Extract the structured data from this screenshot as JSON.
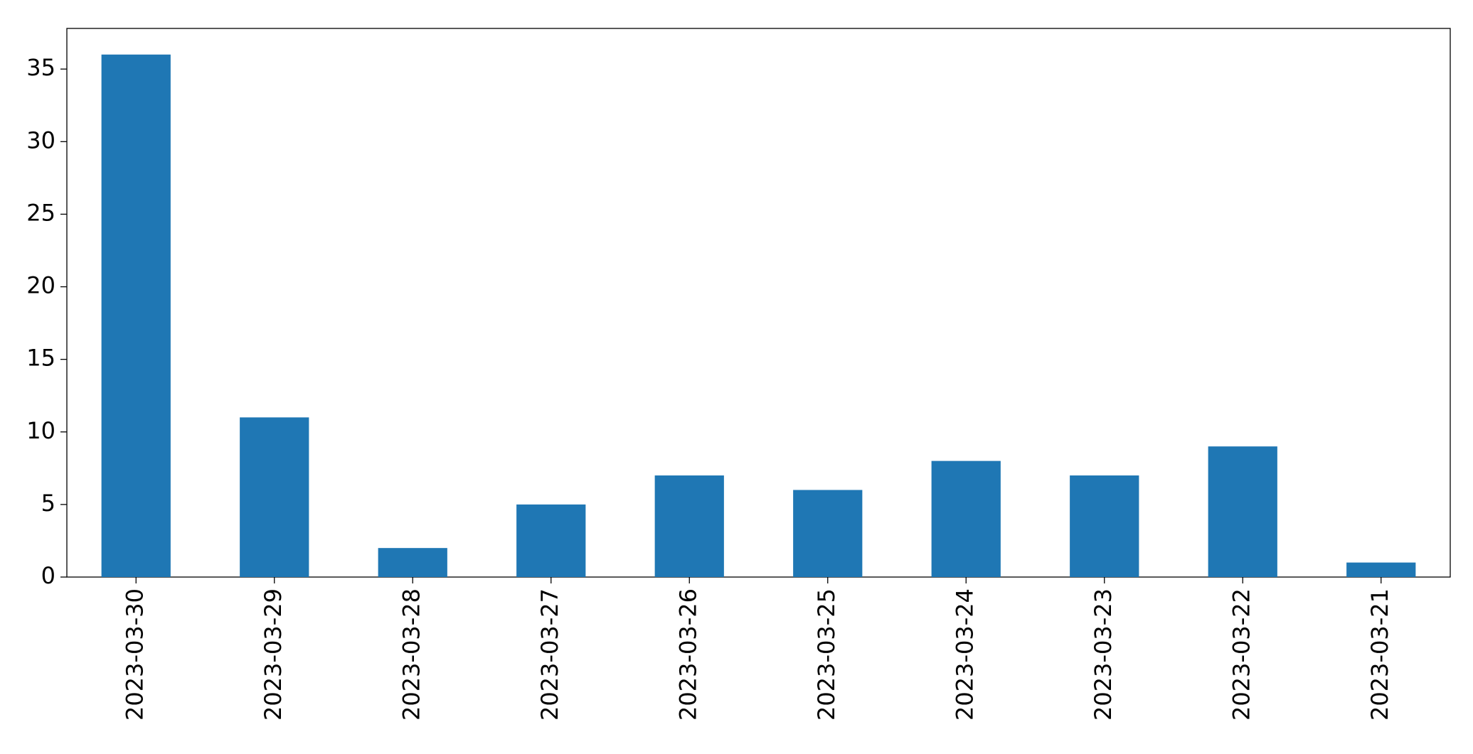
{
  "chart_data": {
    "type": "bar",
    "categories": [
      "2023-03-30",
      "2023-03-29",
      "2023-03-28",
      "2023-03-27",
      "2023-03-26",
      "2023-03-25",
      "2023-03-24",
      "2023-03-23",
      "2023-03-22",
      "2023-03-21"
    ],
    "values": [
      36,
      11,
      2,
      5,
      7,
      6,
      8,
      7,
      9,
      1
    ],
    "color": "#1f77b4",
    "ylim": [
      0,
      37.8
    ],
    "yticks": [
      0,
      5,
      10,
      15,
      20,
      25,
      30,
      35
    ],
    "grid": false
  }
}
